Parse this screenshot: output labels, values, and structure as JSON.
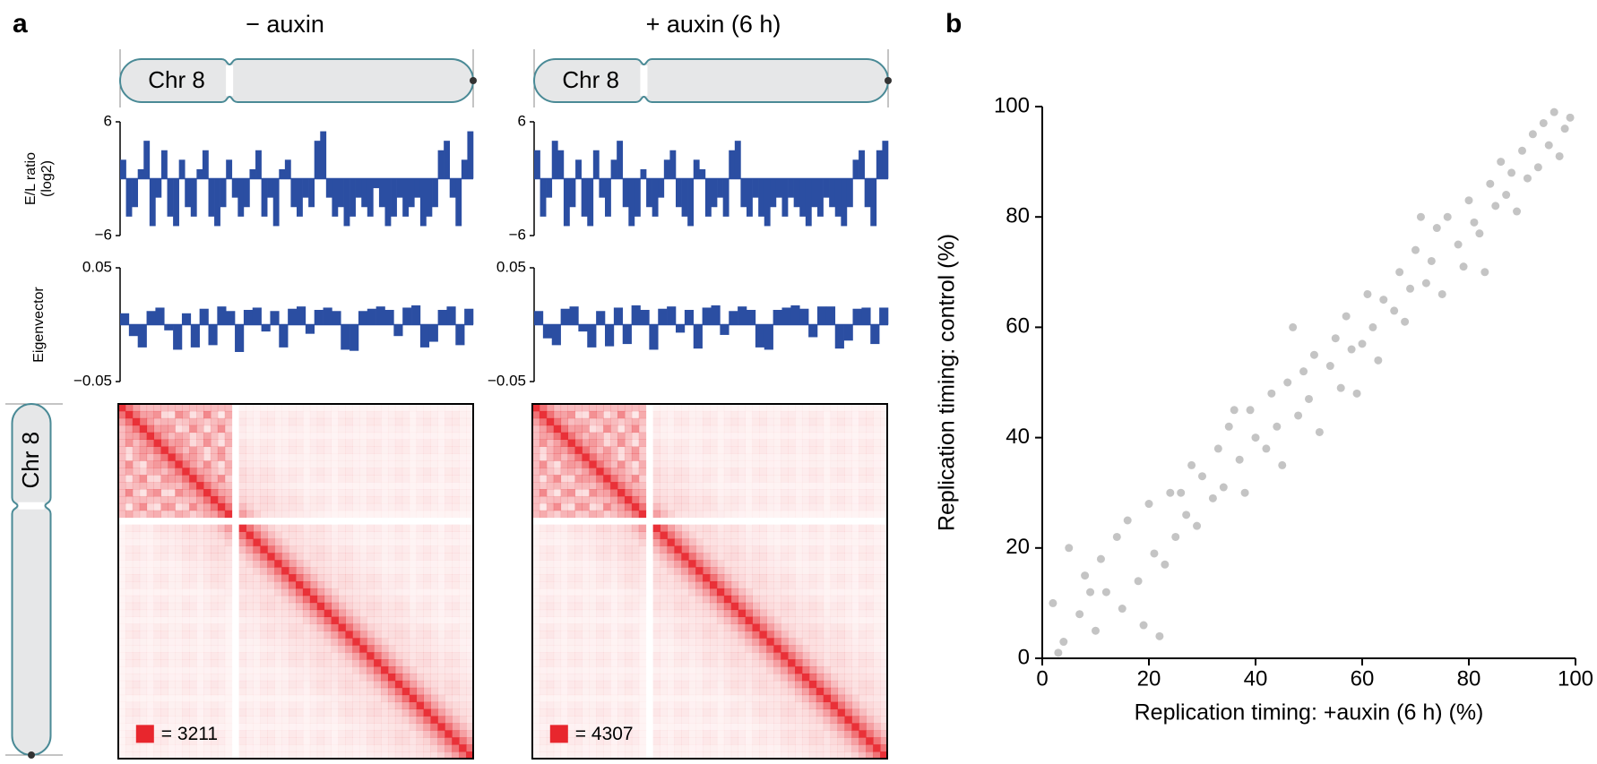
{
  "figure": {
    "panel_a": "a",
    "panel_b": "b",
    "titles": [
      "− auxin",
      "+ auxin (6 h)"
    ],
    "title_colors": [
      "#000000",
      "#e8262d"
    ],
    "chromosome": "Chr 8"
  },
  "chart_data": [
    {
      "type": "bar",
      "ylabel": [
        "E/L ratio",
        "(log2)"
      ],
      "ylim": [
        -6,
        6
      ],
      "yticks": [
        {
          "value": -6,
          "label": "−6"
        },
        6
      ],
      "color": "#2b4ea2",
      "values": [
        2,
        -4,
        -3,
        1,
        4,
        -5,
        -2,
        3,
        -4,
        -5,
        2,
        -3,
        -4,
        1,
        3,
        -4,
        -5,
        -3,
        2,
        -2,
        -4,
        -3,
        1,
        3,
        -4,
        -2,
        -5,
        1,
        2,
        -3,
        -4,
        -2,
        -3,
        4,
        5,
        -2,
        -4,
        -3,
        -5,
        -4,
        -2,
        -3,
        -4,
        -1,
        -3,
        -5,
        -4,
        -2,
        -4,
        -3,
        -2,
        -5,
        -4,
        -3,
        3,
        4,
        -2,
        -5,
        2,
        5
      ]
    },
    {
      "type": "bar",
      "ylim": [
        -6,
        6
      ],
      "yticks": [
        {
          "value": -6,
          "label": "−6"
        },
        6
      ],
      "color": "#2b4ea2",
      "values": [
        3,
        -4,
        -2,
        4,
        3,
        -5,
        -3,
        2,
        -4,
        -5,
        3,
        -2,
        -4,
        2,
        4,
        -3,
        -5,
        -4,
        1,
        -3,
        -4,
        -2,
        2,
        3,
        -3,
        -4,
        -5,
        2,
        1,
        -4,
        -3,
        -2,
        -4,
        3,
        4,
        -3,
        -4,
        -2,
        -4,
        -5,
        -3,
        -2,
        -4,
        -2,
        -3,
        -4,
        -5,
        -3,
        -4,
        -2,
        -3,
        -4,
        -5,
        -3,
        2,
        3,
        -3,
        -5,
        3,
        4
      ]
    },
    {
      "type": "bar",
      "ylabel": "Eigenvector",
      "ylim": [
        -0.05,
        0.05
      ],
      "yticks": [
        {
          "value": -0.05,
          "label": "−0.05"
        },
        0.05
      ],
      "color": "#2b4ea2",
      "values": [
        0.01,
        -0.01,
        -0.02,
        0.012,
        0.015,
        -0.005,
        -0.022,
        0.01,
        -0.02,
        0.014,
        -0.018,
        0.016,
        0.012,
        -0.024,
        0.013,
        0.015,
        -0.006,
        0.012,
        -0.02,
        0.014,
        0.016,
        -0.008,
        0.013,
        0.015,
        0.012,
        -0.022,
        -0.023,
        0.012,
        0.014,
        0.016,
        0.013,
        -0.01,
        0.015,
        0.017,
        -0.02,
        -0.015,
        0.013,
        0.016,
        -0.018,
        0.014
      ]
    },
    {
      "type": "bar",
      "ylim": [
        -0.05,
        0.05
      ],
      "yticks": [
        {
          "value": -0.05,
          "label": "−0.05"
        },
        0.05
      ],
      "color": "#2b4ea2",
      "values": [
        0.012,
        -0.012,
        -0.018,
        0.014,
        0.016,
        -0.006,
        -0.02,
        0.012,
        -0.019,
        0.015,
        -0.017,
        0.017,
        0.013,
        -0.022,
        0.014,
        0.016,
        -0.007,
        0.013,
        -0.021,
        0.015,
        0.017,
        -0.009,
        0.012,
        0.016,
        0.013,
        -0.02,
        -0.022,
        0.013,
        0.015,
        0.017,
        0.014,
        -0.011,
        0.016,
        0.016,
        -0.021,
        -0.014,
        0.014,
        0.015,
        -0.017,
        0.015
      ]
    },
    {
      "type": "heatmap",
      "color": "#e8262d",
      "legend_label": "= 3211"
    },
    {
      "type": "heatmap",
      "color": "#e8262d",
      "legend_label": "= 4307"
    },
    {
      "type": "scatter",
      "xlabel": "Replication timing: +auxin (6 h) (%)",
      "ylabel": "Replication timing: control (%)",
      "xlim": [
        0,
        100
      ],
      "ylim": [
        0,
        100
      ],
      "xticks": [
        0,
        20,
        40,
        60,
        80,
        100
      ],
      "yticks": [
        0,
        20,
        40,
        60,
        80,
        100
      ],
      "color": "#555555",
      "x": [
        2,
        4,
        5,
        7,
        8,
        10,
        11,
        12,
        14,
        15,
        16,
        18,
        19,
        20,
        21,
        23,
        24,
        25,
        27,
        28,
        29,
        30,
        32,
        33,
        34,
        35,
        37,
        38,
        39,
        40,
        42,
        43,
        44,
        45,
        46,
        48,
        49,
        50,
        51,
        52,
        54,
        55,
        56,
        57,
        58,
        60,
        61,
        62,
        63,
        64,
        66,
        67,
        68,
        69,
        70,
        72,
        73,
        74,
        75,
        76,
        78,
        79,
        80,
        81,
        82,
        84,
        85,
        86,
        87,
        88,
        90,
        91,
        92,
        93,
        94,
        95,
        96,
        97,
        98,
        99,
        3,
        9,
        22,
        36,
        47,
        59,
        71,
        83,
        89,
        26
      ],
      "y": [
        10,
        3,
        20,
        8,
        15,
        5,
        18,
        12,
        22,
        9,
        25,
        14,
        6,
        28,
        19,
        17,
        30,
        22,
        26,
        35,
        24,
        33,
        29,
        38,
        31,
        42,
        36,
        30,
        45,
        40,
        38,
        48,
        42,
        35,
        50,
        44,
        52,
        47,
        55,
        41,
        53,
        58,
        49,
        62,
        56,
        57,
        66,
        60,
        54,
        65,
        63,
        70,
        61,
        67,
        74,
        68,
        72,
        78,
        66,
        80,
        75,
        71,
        83,
        79,
        77,
        86,
        82,
        90,
        84,
        88,
        92,
        87,
        95,
        89,
        97,
        93,
        99,
        91,
        96,
        98,
        1,
        12,
        4,
        45,
        60,
        48,
        80,
        70,
        81,
        30
      ]
    }
  ]
}
